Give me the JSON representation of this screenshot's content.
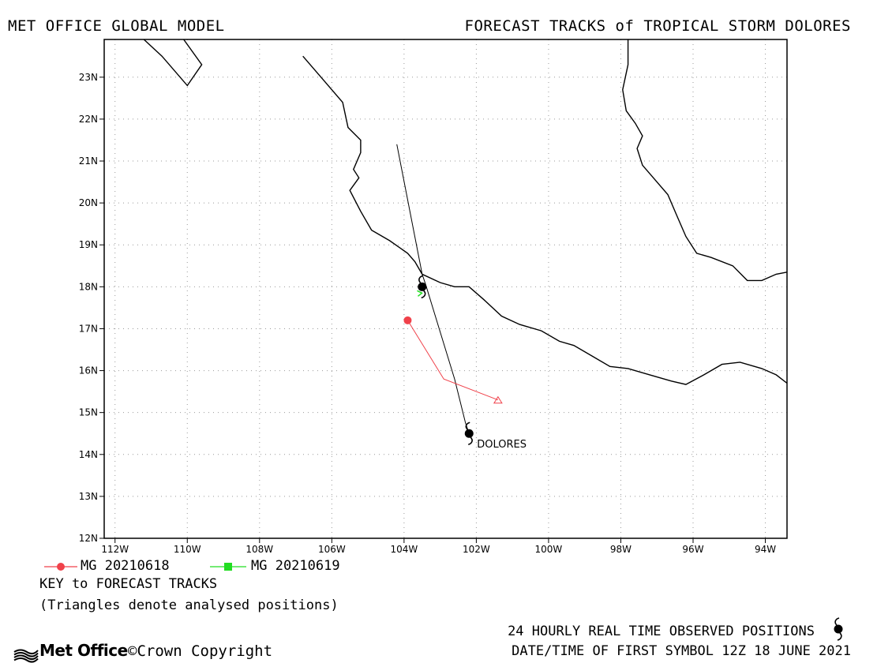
{
  "header": {
    "left_title": "MET OFFICE GLOBAL MODEL",
    "right_title": "FORECAST TRACKS of TROPICAL STORM DOLORES"
  },
  "legend": {
    "items": [
      {
        "label": "MG 20210618",
        "color": "#f0414a",
        "marker": "circle"
      },
      {
        "label": "MG 20210619",
        "color": "#22dd22",
        "marker": "square"
      }
    ],
    "key_title": "KEY to FORECAST TRACKS",
    "note": "(Triangles denote analysed positions)"
  },
  "footer": {
    "observed_note": "24 HOURLY REAL TIME OBSERVED POSITIONS",
    "datetime_note": "DATE/TIME OF FIRST SYMBOL 12Z 18 JUNE 2021",
    "logo_text": "Met Office",
    "copyright": "©Crown Copyright"
  },
  "chart_data": {
    "type": "scatter",
    "xlim": [
      -112.3,
      -93.4
    ],
    "ylim": [
      12,
      23.9
    ],
    "x_ticks": [
      {
        "value": -112,
        "label": "112W"
      },
      {
        "value": -110,
        "label": "110W"
      },
      {
        "value": -108,
        "label": "108W"
      },
      {
        "value": -106,
        "label": "106W"
      },
      {
        "value": -104,
        "label": "104W"
      },
      {
        "value": -102,
        "label": "102W"
      },
      {
        "value": -100,
        "label": "100W"
      },
      {
        "value": -98,
        "label": "98W"
      },
      {
        "value": -96,
        "label": "96W"
      },
      {
        "value": -94,
        "label": "94W"
      }
    ],
    "y_ticks": [
      {
        "value": 12,
        "label": "12N"
      },
      {
        "value": 13,
        "label": "13N"
      },
      {
        "value": 14,
        "label": "14N"
      },
      {
        "value": 15,
        "label": "15N"
      },
      {
        "value": 16,
        "label": "16N"
      },
      {
        "value": 17,
        "label": "17N"
      },
      {
        "value": 18,
        "label": "18N"
      },
      {
        "value": 19,
        "label": "19N"
      },
      {
        "value": 20,
        "label": "20N"
      },
      {
        "value": 21,
        "label": "21N"
      },
      {
        "value": 22,
        "label": "22N"
      },
      {
        "value": 23,
        "label": "23N"
      }
    ],
    "grid": true,
    "coastlines": [
      [
        [
          -111.2,
          23.9
        ],
        [
          -110.7,
          23.5
        ],
        [
          -110.0,
          22.8
        ],
        [
          -109.6,
          23.3
        ],
        [
          -110.1,
          23.9
        ]
      ],
      [
        [
          -106.8,
          23.5
        ],
        [
          -106.2,
          22.9
        ],
        [
          -105.7,
          22.4
        ],
        [
          -105.55,
          21.8
        ],
        [
          -105.2,
          21.5
        ],
        [
          -105.2,
          21.2
        ],
        [
          -105.4,
          20.8
        ],
        [
          -105.25,
          20.6
        ],
        [
          -105.5,
          20.3
        ],
        [
          -105.2,
          19.8
        ],
        [
          -104.9,
          19.35
        ],
        [
          -104.4,
          19.1
        ],
        [
          -103.9,
          18.8
        ],
        [
          -103.7,
          18.6
        ],
        [
          -103.5,
          18.3
        ],
        [
          -103.0,
          18.1
        ],
        [
          -102.6,
          18.0
        ],
        [
          -102.2,
          18.0
        ],
        [
          -101.8,
          17.7
        ],
        [
          -101.3,
          17.3
        ],
        [
          -100.8,
          17.1
        ],
        [
          -100.2,
          16.95
        ],
        [
          -99.7,
          16.7
        ],
        [
          -99.3,
          16.6
        ],
        [
          -98.8,
          16.35
        ],
        [
          -98.3,
          16.1
        ],
        [
          -97.8,
          16.05
        ],
        [
          -97.2,
          15.9
        ],
        [
          -96.6,
          15.75
        ],
        [
          -96.2,
          15.67
        ],
        [
          -95.7,
          15.9
        ],
        [
          -95.2,
          16.15
        ],
        [
          -94.7,
          16.2
        ],
        [
          -94.1,
          16.05
        ],
        [
          -93.7,
          15.9
        ],
        [
          -93.4,
          15.7
        ]
      ],
      [
        [
          -97.8,
          23.9
        ],
        [
          -97.8,
          23.3
        ],
        [
          -97.95,
          22.7
        ],
        [
          -97.85,
          22.2
        ],
        [
          -97.6,
          21.9
        ],
        [
          -97.4,
          21.6
        ],
        [
          -97.55,
          21.3
        ],
        [
          -97.4,
          20.9
        ],
        [
          -97.1,
          20.6
        ],
        [
          -96.7,
          20.2
        ],
        [
          -96.45,
          19.7
        ],
        [
          -96.2,
          19.2
        ],
        [
          -95.9,
          18.8
        ],
        [
          -95.5,
          18.7
        ],
        [
          -94.9,
          18.5
        ],
        [
          -94.5,
          18.15
        ],
        [
          -94.1,
          18.15
        ],
        [
          -93.7,
          18.3
        ],
        [
          -93.4,
          18.35
        ]
      ]
    ],
    "series": [
      {
        "name": "MG 20210618",
        "color": "#f0414a",
        "points": [
          [
            -103.9,
            17.2
          ],
          [
            -102.9,
            15.8
          ],
          [
            -101.4,
            15.3
          ]
        ]
      },
      {
        "name": "MG 20210619",
        "color": "#22dd22",
        "points": [
          [
            -103.55,
            17.85
          ]
        ]
      }
    ],
    "observed_track": [
      [
        -104.2,
        21.4
      ],
      [
        -103.5,
        18.3
      ],
      [
        -103.4,
        18.05
      ],
      [
        -102.6,
        15.8
      ],
      [
        -102.3,
        14.75
      ],
      [
        -102.2,
        14.5
      ]
    ],
    "storm_positions": [
      {
        "lon": -102.2,
        "lat": 14.5,
        "label": "DOLORES"
      },
      {
        "lon": -103.5,
        "lat": 18.0,
        "label": ""
      }
    ]
  }
}
